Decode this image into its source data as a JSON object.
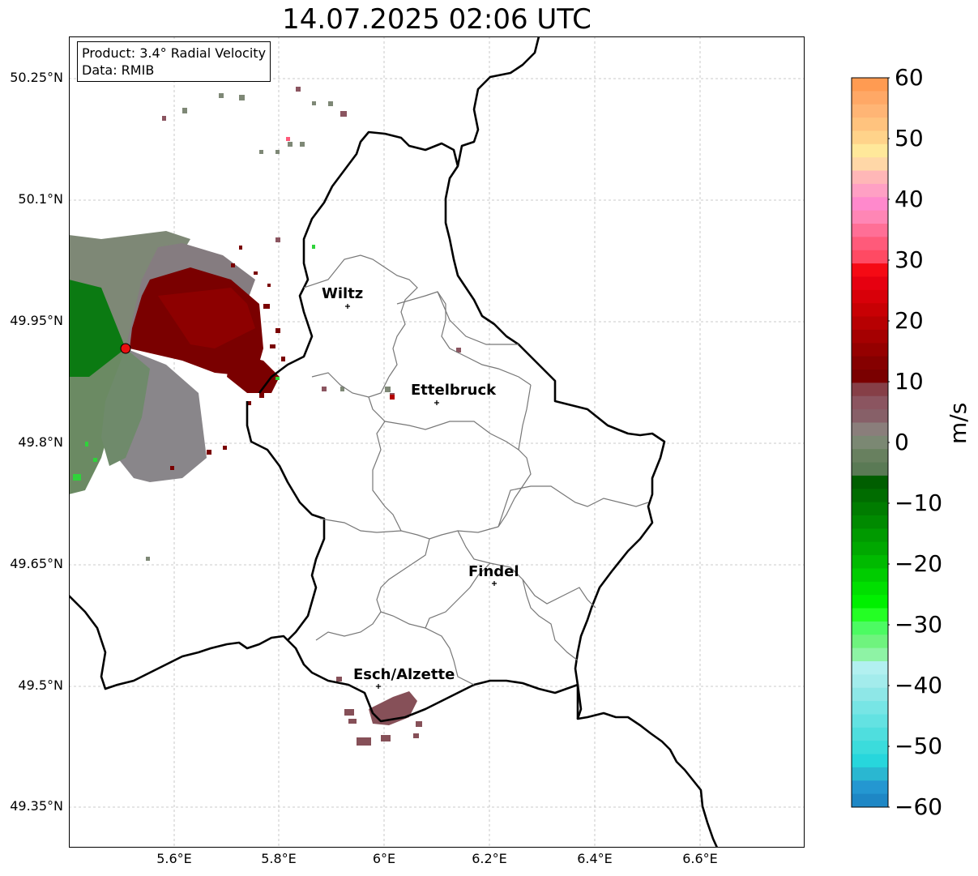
{
  "title": "14.07.2025 02:06 UTC",
  "info_box": {
    "product": "Product: 3.4° Radial Velocity",
    "data": "Data: RMIB"
  },
  "lat_ticks": [
    "50.25°N",
    "50.1°N",
    "49.95°N",
    "49.8°N",
    "49.65°N",
    "49.5°N",
    "49.35°N"
  ],
  "lon_ticks": [
    "5.6°E",
    "5.8°E",
    "6°E",
    "6.2°E",
    "6.4°E",
    "6.6°E"
  ],
  "cities": [
    {
      "name": "Wiltz"
    },
    {
      "name": "Ettelbruck"
    },
    {
      "name": "Findel"
    },
    {
      "name": "Esch/Alzette"
    }
  ],
  "colorbar": {
    "label": "m/s",
    "ticks": [
      "60",
      "50",
      "40",
      "30",
      "20",
      "10",
      "0",
      "−10",
      "−20",
      "−30",
      "−40",
      "−50",
      "−60"
    ],
    "range": [
      -60,
      60
    ],
    "colors_top_to_bottom": [
      "#ff9b52",
      "#ffa866",
      "#ffb575",
      "#ffc37e",
      "#ffd38a",
      "#ffe89a",
      "#ffd7a7",
      "#ffb7b7",
      "#ffa0c4",
      "#ff89cc",
      "#ff86b5",
      "#ff6f96",
      "#ff5a7a",
      "#ff4a63",
      "#f50a14",
      "#e60010",
      "#d80009",
      "#c80004",
      "#b70002",
      "#a50001",
      "#950000",
      "#850000",
      "#7a0000",
      "#863f47",
      "#8b5560",
      "#876068",
      "#8a7e7b",
      "#7b8873",
      "#68805f",
      "#5a7a55",
      "#005e00",
      "#006c00",
      "#007c00",
      "#008a00",
      "#009a00",
      "#00a800",
      "#00ba00",
      "#00cc00",
      "#00df00",
      "#00f000",
      "#24ff24",
      "#4cfb62",
      "#6ff37e",
      "#8ef3a5",
      "#b2f0f0",
      "#a3ecec",
      "#8ee7e7",
      "#77e5e5",
      "#63e2e2",
      "#4fdede",
      "#3bdcdc",
      "#27d6dc",
      "#2ab7d1",
      "#2497d1",
      "#1e87c5"
    ]
  }
}
